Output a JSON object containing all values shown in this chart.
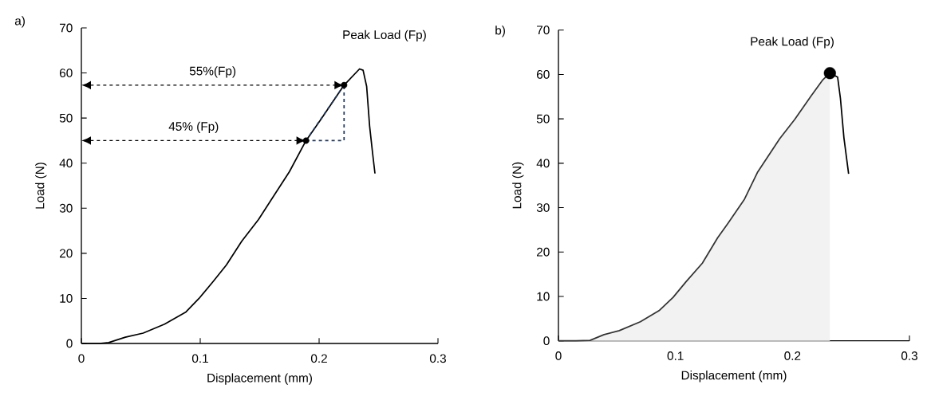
{
  "chart_data": [
    {
      "type": "line",
      "title": "a)",
      "xlabel": "Displacement (mm)",
      "ylabel": "Load (N)",
      "xlim": [
        0,
        0.3
      ],
      "xticks": [
        0,
        0.1,
        0.2,
        0.3
      ],
      "ylim": [
        0,
        70
      ],
      "yticks": [
        0,
        10,
        20,
        30,
        40,
        50,
        60,
        70
      ],
      "series": [
        {
          "color": "#000000",
          "x": [
            0,
            0.015,
            0.023,
            0.037,
            0.052,
            0.07,
            0.088,
            0.099,
            0.111,
            0.122,
            0.135,
            0.149,
            0.162,
            0.175,
            0.189,
            0.202,
            0.221,
            0.234,
            0.237,
            0.24,
            0.2425,
            0.245,
            0.247
          ],
          "values": [
            0,
            0,
            0.2,
            1.4,
            2.3,
            4.3,
            7.0,
            10,
            13.8,
            17.4,
            22.7,
            27.5,
            32.8,
            38.1,
            45,
            49.9,
            57.3,
            60.9,
            60.6,
            57,
            48.2,
            42.2,
            37.7
          ]
        },
        {
          "type": "line",
          "color": "#1f3864",
          "line_style": "dashed",
          "x": [
            0.189,
            0.221
          ],
          "values": [
            45,
            57.3
          ]
        },
        {
          "type": "line",
          "color": "#1f3864",
          "line_style": "dashed",
          "x": [
            0.189,
            0.221,
            0.221
          ],
          "values": [
            45,
            45,
            57.3
          ]
        },
        {
          "type": "scatter",
          "color": "#000000",
          "marker": "circle",
          "x": [
            0.189,
            0.221
          ],
          "values": [
            45,
            57.3
          ]
        }
      ],
      "ref_lines": [
        {
          "axis": "y",
          "value": 57.3,
          "label": "55%(Fp)",
          "line_style": "dashed",
          "color": "#000000"
        },
        {
          "axis": "y",
          "value": 45,
          "label": "45% (Fp)",
          "line_style": "dashed",
          "color": "#000000"
        }
      ],
      "annotations": [
        "Peak Load (Fp)"
      ]
    },
    {
      "type": "area",
      "title": "b)",
      "xlabel": "Displacement (mm)",
      "ylabel": "Load (N)",
      "xlim": [
        0,
        0.3
      ],
      "xticks": [
        0,
        0.1,
        0.2,
        0.3
      ],
      "ylim": [
        0,
        70
      ],
      "yticks": [
        0,
        10,
        20,
        30,
        40,
        50,
        60,
        70
      ],
      "series": [
        {
          "color": "#f2f2f2",
          "x": [
            0,
            0.015,
            0.027,
            0.039,
            0.052,
            0.07,
            0.086,
            0.098,
            0.109,
            0.123,
            0.136,
            0.145,
            0.159,
            0.17,
            0.189,
            0.202,
            0.216,
            0.226,
            0.232
          ],
          "values": [
            0,
            0,
            0.1,
            1.4,
            2.3,
            4.3,
            6.8,
            9.8,
            13.3,
            17.5,
            23.2,
            26.5,
            31.9,
            37.9,
            45.5,
            49.9,
            55.2,
            58.8,
            60.3
          ]
        },
        {
          "type": "line",
          "color": "#000000",
          "x": [
            0.232,
            0.2386,
            0.241,
            0.244,
            0.248
          ],
          "values": [
            60.3,
            59.4,
            54.6,
            45.7,
            37.6
          ]
        },
        {
          "type": "scatter",
          "color": "#000000",
          "marker": "circle",
          "x": [
            0.232
          ],
          "values": [
            60.3
          ]
        }
      ],
      "annotations": [
        "Peak Load (Fp)"
      ]
    }
  ]
}
